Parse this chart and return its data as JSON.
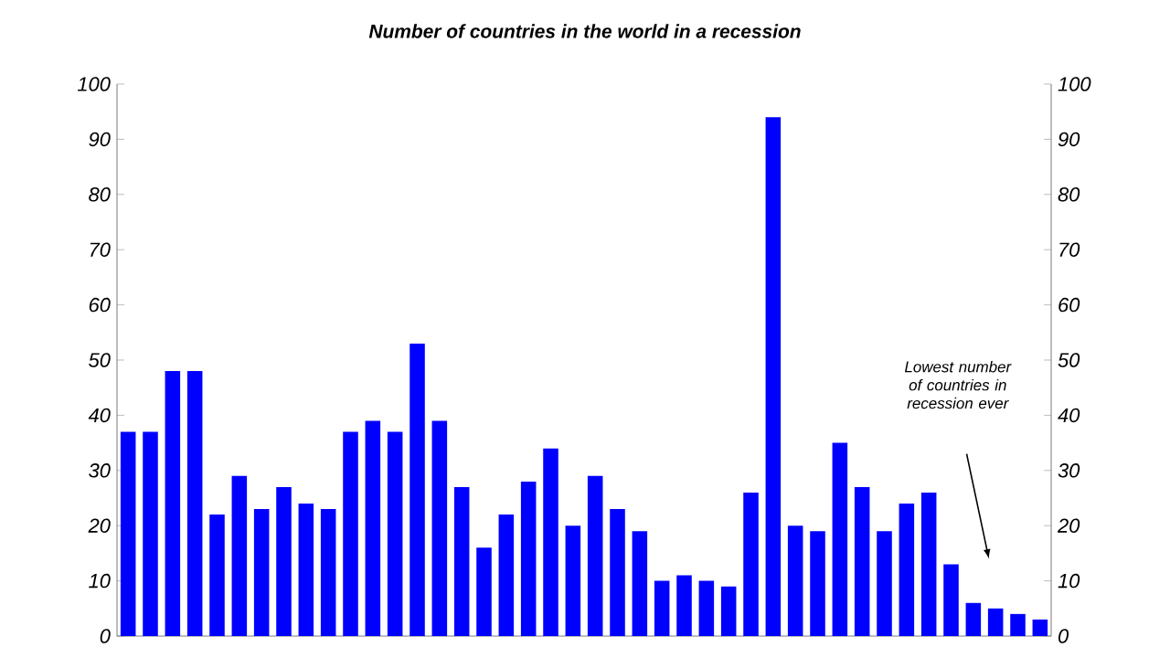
{
  "chart_data": {
    "type": "bar",
    "title": "Number of countries in the world in a recession",
    "categories": [
      null,
      null,
      null,
      null,
      null,
      null,
      null,
      null,
      null,
      null,
      null,
      null,
      null,
      null,
      null,
      null,
      null,
      null,
      null,
      null,
      null,
      null,
      null,
      null,
      null,
      null,
      null,
      null,
      null,
      null,
      null,
      null,
      null,
      null,
      null,
      null,
      null,
      null,
      null,
      null,
      null,
      null
    ],
    "values": [
      37,
      37,
      48,
      48,
      22,
      29,
      23,
      27,
      24,
      23,
      37,
      39,
      37,
      53,
      39,
      27,
      16,
      22,
      28,
      34,
      20,
      29,
      23,
      19,
      10,
      11,
      10,
      9,
      26,
      94,
      20,
      19,
      35,
      27,
      19,
      24,
      26,
      13,
      6,
      5,
      4,
      3
    ],
    "color": "#0000ff",
    "ylim": [
      0,
      100
    ],
    "yticks": [
      0,
      10,
      20,
      30,
      40,
      50,
      60,
      70,
      80,
      90,
      100
    ],
    "y2lim": [
      0,
      100
    ],
    "y2ticks": [
      0,
      10,
      20,
      30,
      40,
      50,
      60,
      70,
      80,
      90,
      100
    ],
    "annotations": [
      "Lowest number of countries in recession ever"
    ]
  }
}
